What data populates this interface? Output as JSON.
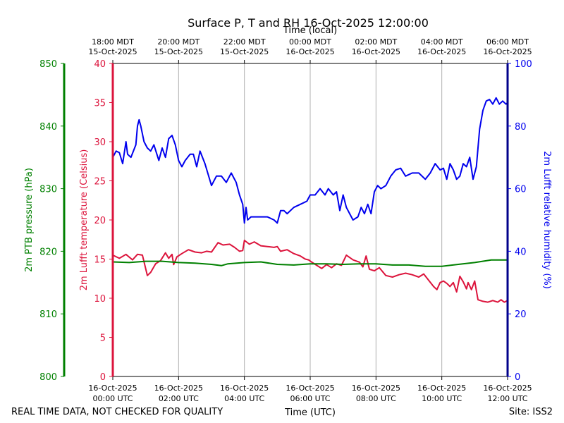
{
  "chart_data": {
    "type": "line",
    "title": "Surface P, T and RH 16-Oct-2025 12:00:00",
    "top_axis_title": "Time (local)",
    "xlabel": "Time (UTC)",
    "footer_left": "REAL TIME DATA, NOT CHECKED FOR QUALITY",
    "footer_right": "Site: ISS2",
    "x_range_hours": [
      0,
      12
    ],
    "grid": "vertical",
    "utc_ticks": [
      {
        "hour": 0,
        "date": "16-Oct-2025",
        "time": "00:00 UTC"
      },
      {
        "hour": 2,
        "date": "16-Oct-2025",
        "time": "02:00 UTC"
      },
      {
        "hour": 4,
        "date": "16-Oct-2025",
        "time": "04:00 UTC"
      },
      {
        "hour": 6,
        "date": "16-Oct-2025",
        "time": "06:00 UTC"
      },
      {
        "hour": 8,
        "date": "16-Oct-2025",
        "time": "08:00 UTC"
      },
      {
        "hour": 10,
        "date": "16-Oct-2025",
        "time": "10:00 UTC"
      },
      {
        "hour": 12,
        "date": "16-Oct-2025",
        "time": "12:00 UTC"
      }
    ],
    "local_ticks": [
      {
        "hour": 0,
        "time": "18:00 MDT",
        "date": "15-Oct-2025"
      },
      {
        "hour": 2,
        "time": "20:00 MDT",
        "date": "15-Oct-2025"
      },
      {
        "hour": 4,
        "time": "22:00 MDT",
        "date": "15-Oct-2025"
      },
      {
        "hour": 6,
        "time": "00:00 MDT",
        "date": "16-Oct-2025"
      },
      {
        "hour": 8,
        "time": "02:00 MDT",
        "date": "16-Oct-2025"
      },
      {
        "hour": 10,
        "time": "04:00 MDT",
        "date": "16-Oct-2025"
      },
      {
        "hour": 12,
        "time": "06:00 MDT",
        "date": "16-Oct-2025"
      }
    ],
    "axes": {
      "pressure": {
        "label": "2m PTB pressure (hPa)",
        "range": [
          800,
          850
        ],
        "ticks": [
          800,
          810,
          820,
          830,
          840,
          850
        ],
        "color": "#008000"
      },
      "temperature": {
        "label": "2m Lufft temperature (Celsius)",
        "range": [
          0,
          40
        ],
        "ticks": [
          0,
          5,
          10,
          15,
          20,
          25,
          30,
          35,
          40
        ],
        "color": "#dc143c"
      },
      "humidity": {
        "label": "2m Lufft relative humidity (%)",
        "range": [
          0,
          100
        ],
        "ticks": [
          0,
          20,
          40,
          60,
          80,
          100
        ],
        "color": "#0000ee"
      }
    },
    "series": [
      {
        "axis": "temperature",
        "color": "#dc143c",
        "x": [
          0.0,
          0.2,
          0.4,
          0.6,
          0.75,
          0.9,
          1.05,
          1.15,
          1.3,
          1.45,
          1.6,
          1.7,
          1.8,
          1.85,
          1.95,
          2.1,
          2.3,
          2.5,
          2.7,
          2.85,
          3.0,
          3.2,
          3.35,
          3.55,
          3.7,
          3.85,
          3.95,
          4.0,
          4.15,
          4.3,
          4.5,
          4.7,
          4.9,
          5.0,
          5.1,
          5.3,
          5.5,
          5.7,
          5.85,
          5.95,
          6.05,
          6.2,
          6.35,
          6.5,
          6.65,
          6.8,
          6.95,
          7.1,
          7.3,
          7.5,
          7.6,
          7.7,
          7.8,
          7.95,
          8.1,
          8.3,
          8.5,
          8.7,
          8.9,
          9.1,
          9.3,
          9.45,
          9.6,
          9.75,
          9.85,
          9.95,
          10.05,
          10.15,
          10.25,
          10.35,
          10.45,
          10.55,
          10.65,
          10.75,
          10.8,
          10.9,
          11.0,
          11.1,
          11.25,
          11.4,
          11.55,
          11.7,
          11.8,
          11.9,
          12.0
        ],
        "values": [
          15.5,
          15.1,
          15.6,
          14.9,
          15.6,
          15.5,
          12.9,
          13.3,
          14.4,
          14.8,
          15.8,
          15.1,
          15.6,
          14.3,
          15.3,
          15.7,
          16.2,
          15.9,
          15.8,
          16.0,
          15.9,
          17.1,
          16.8,
          16.9,
          16.5,
          16.0,
          16.1,
          17.4,
          16.9,
          17.2,
          16.7,
          16.6,
          16.5,
          16.6,
          16.0,
          16.2,
          15.7,
          15.4,
          15.0,
          14.9,
          14.6,
          14.2,
          13.8,
          14.3,
          13.9,
          14.4,
          14.2,
          15.5,
          14.9,
          14.6,
          14.0,
          15.4,
          13.7,
          13.5,
          13.9,
          12.9,
          12.7,
          13.0,
          13.2,
          13.0,
          12.7,
          13.1,
          12.3,
          11.5,
          11.1,
          12.0,
          12.2,
          11.9,
          11.5,
          12.0,
          10.8,
          12.8,
          12.1,
          11.2,
          12.0,
          11.1,
          12.2,
          9.8,
          9.6,
          9.5,
          9.7,
          9.5,
          9.8,
          9.5,
          9.7
        ]
      },
      {
        "axis": "pressure",
        "color": "#008000",
        "x": [
          0.0,
          0.5,
          1.0,
          1.5,
          2.0,
          2.5,
          3.0,
          3.3,
          3.5,
          4.0,
          4.5,
          5.0,
          5.5,
          6.0,
          6.5,
          7.0,
          7.5,
          8.0,
          8.5,
          9.0,
          9.5,
          10.0,
          10.5,
          11.0,
          11.5,
          12.0
        ],
        "values": [
          818.3,
          818.2,
          818.4,
          818.4,
          818.2,
          818.1,
          817.9,
          817.7,
          818.0,
          818.2,
          818.3,
          817.9,
          817.8,
          818.0,
          818.0,
          817.9,
          818.0,
          818.0,
          817.8,
          817.8,
          817.6,
          817.6,
          817.9,
          818.2,
          818.6,
          818.6
        ]
      },
      {
        "axis": "humidity",
        "color": "#0000ee",
        "x": [
          0.0,
          0.1,
          0.2,
          0.3,
          0.4,
          0.45,
          0.55,
          0.7,
          0.75,
          0.8,
          0.85,
          0.95,
          1.05,
          1.15,
          1.25,
          1.4,
          1.5,
          1.6,
          1.7,
          1.8,
          1.9,
          2.0,
          2.1,
          2.2,
          2.35,
          2.45,
          2.55,
          2.65,
          2.8,
          3.0,
          3.15,
          3.3,
          3.45,
          3.6,
          3.75,
          3.85,
          3.95,
          4.0,
          4.05,
          4.1,
          4.2,
          4.3,
          4.5,
          4.7,
          4.9,
          5.0,
          5.1,
          5.2,
          5.3,
          5.5,
          5.7,
          5.9,
          6.0,
          6.15,
          6.3,
          6.45,
          6.55,
          6.7,
          6.8,
          6.9,
          7.0,
          7.1,
          7.2,
          7.3,
          7.45,
          7.55,
          7.65,
          7.75,
          7.85,
          7.95,
          8.05,
          8.15,
          8.3,
          8.45,
          8.6,
          8.75,
          8.9,
          9.1,
          9.3,
          9.5,
          9.65,
          9.8,
          9.95,
          10.05,
          10.15,
          10.25,
          10.35,
          10.45,
          10.55,
          10.65,
          10.75,
          10.85,
          10.95,
          11.05,
          11.15,
          11.25,
          11.35,
          11.45,
          11.55,
          11.65,
          11.75,
          11.85,
          11.95,
          12.0
        ],
        "values": [
          70.0,
          72.0,
          71.5,
          68.0,
          75.0,
          71.0,
          70.0,
          74.0,
          80.0,
          82.0,
          80.0,
          75.0,
          73.0,
          72.0,
          74.0,
          69.0,
          73.0,
          70.0,
          76.0,
          77.0,
          74.0,
          69.0,
          67.0,
          69.0,
          71.0,
          71.0,
          67.0,
          72.0,
          68.0,
          61.0,
          64.0,
          64.0,
          62.0,
          65.0,
          62.0,
          58.0,
          55.0,
          49.0,
          54.0,
          50.0,
          51.0,
          51.0,
          51.0,
          51.0,
          50.0,
          49.0,
          53.0,
          53.0,
          52.0,
          54.0,
          55.0,
          56.0,
          58.0,
          58.0,
          60.0,
          58.0,
          60.0,
          58.0,
          59.0,
          53.0,
          58.0,
          54.0,
          52.0,
          50.0,
          51.0,
          54.0,
          52.0,
          55.0,
          52.0,
          59.0,
          61.0,
          60.0,
          61.0,
          64.0,
          66.0,
          66.5,
          64.0,
          65.0,
          65.0,
          63.0,
          65.0,
          68.0,
          66.0,
          66.5,
          63.0,
          68.0,
          66.0,
          63.0,
          64.0,
          68.0,
          67.0,
          70.0,
          63.0,
          67.0,
          79.0,
          85.0,
          88.0,
          88.5,
          87.0,
          89.0,
          87.0,
          88.0,
          87.0,
          87.5
        ]
      }
    ]
  }
}
